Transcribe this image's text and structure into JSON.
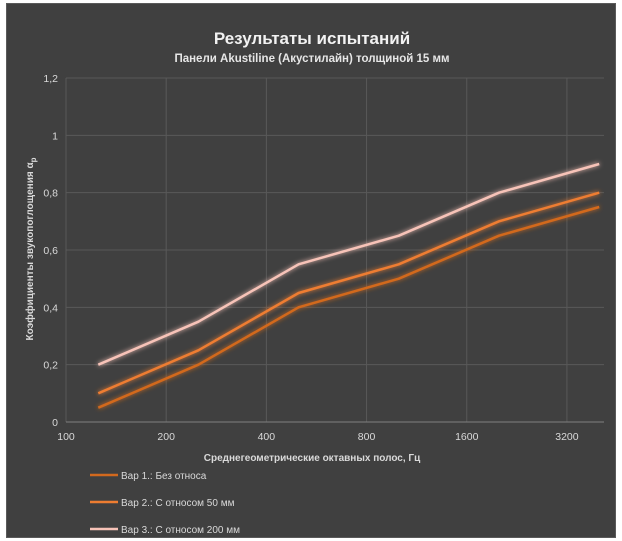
{
  "chart_data": {
    "type": "line",
    "title": "Результаты испытаний",
    "subtitle": "Панели Akustiline (Акустилайн) толщиной 15 мм",
    "xlabel": "Среднегеометрические октавных полос, Гц",
    "ylabel": "Коэффициенты звукопоглощения αp",
    "ylabel_main": "Коэффициенты звукопоглощения α",
    "ylabel_sub": "p",
    "x_scale": "log2",
    "x_ticks": [
      100,
      200,
      400,
      800,
      1600,
      3200
    ],
    "x_tick_labels": [
      "100",
      "200",
      "400",
      "800",
      "1600",
      "3200"
    ],
    "y_ticks": [
      0,
      0.2,
      0.4,
      0.6,
      0.8,
      1,
      1.2
    ],
    "y_tick_labels": [
      "0",
      "0,2",
      "0,4",
      "0,6",
      "0,8",
      "1",
      "1,2"
    ],
    "ylim": [
      0,
      1.2
    ],
    "grid": true,
    "legend_position": "bottom-left",
    "x": [
      125,
      250,
      500,
      1000,
      2000,
      4000
    ],
    "series": [
      {
        "name": "Вар 1.: Без относа",
        "color": "#d2691e",
        "values": [
          0.05,
          0.2,
          0.4,
          0.5,
          0.65,
          0.75
        ]
      },
      {
        "name": "Вар 2.: С относом 50 мм",
        "color": "#ee7d31",
        "values": [
          0.1,
          0.25,
          0.45,
          0.55,
          0.7,
          0.8
        ]
      },
      {
        "name": "Вар 3.: С относом 200 мм",
        "color": "#f7c3b8",
        "values": [
          0.2,
          0.35,
          0.55,
          0.65,
          0.8,
          0.9
        ]
      }
    ]
  }
}
